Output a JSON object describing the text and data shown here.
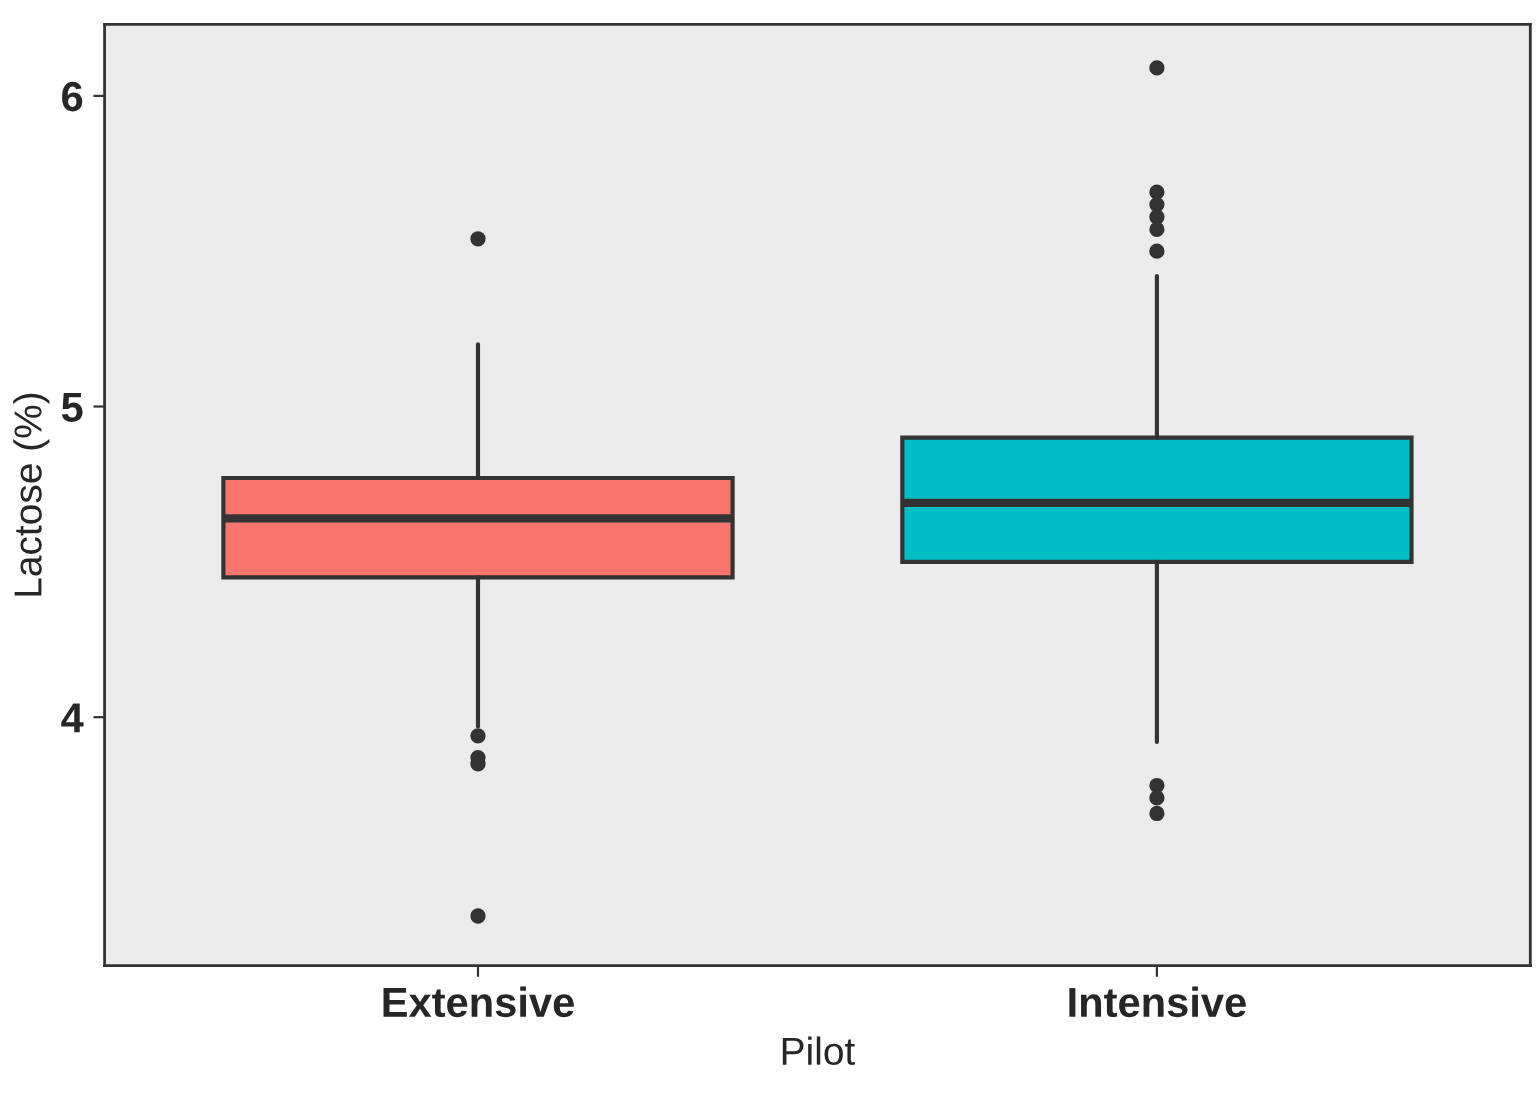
{
  "chart_data": {
    "type": "box",
    "xlabel": "Pilot",
    "ylabel": "Lactose (%)",
    "categories": [
      "Extensive",
      "Intensive"
    ],
    "colors": [
      "#f8766d",
      "#00bfc4"
    ],
    "boxes": [
      {
        "low": 3.97,
        "q1": 4.45,
        "median": 4.64,
        "q3": 4.77,
        "high": 5.2,
        "outliers": [
          5.54,
          3.94,
          3.87,
          3.85,
          3.36
        ]
      },
      {
        "low": 3.92,
        "q1": 4.5,
        "median": 4.69,
        "q3": 4.9,
        "high": 5.42,
        "outliers": [
          6.09,
          5.69,
          5.65,
          5.61,
          5.57,
          5.5,
          3.78,
          3.74,
          3.69
        ]
      }
    ],
    "ylim": [
      3.2,
      6.23
    ],
    "yticks": [
      4,
      5,
      6
    ],
    "grid": false
  }
}
